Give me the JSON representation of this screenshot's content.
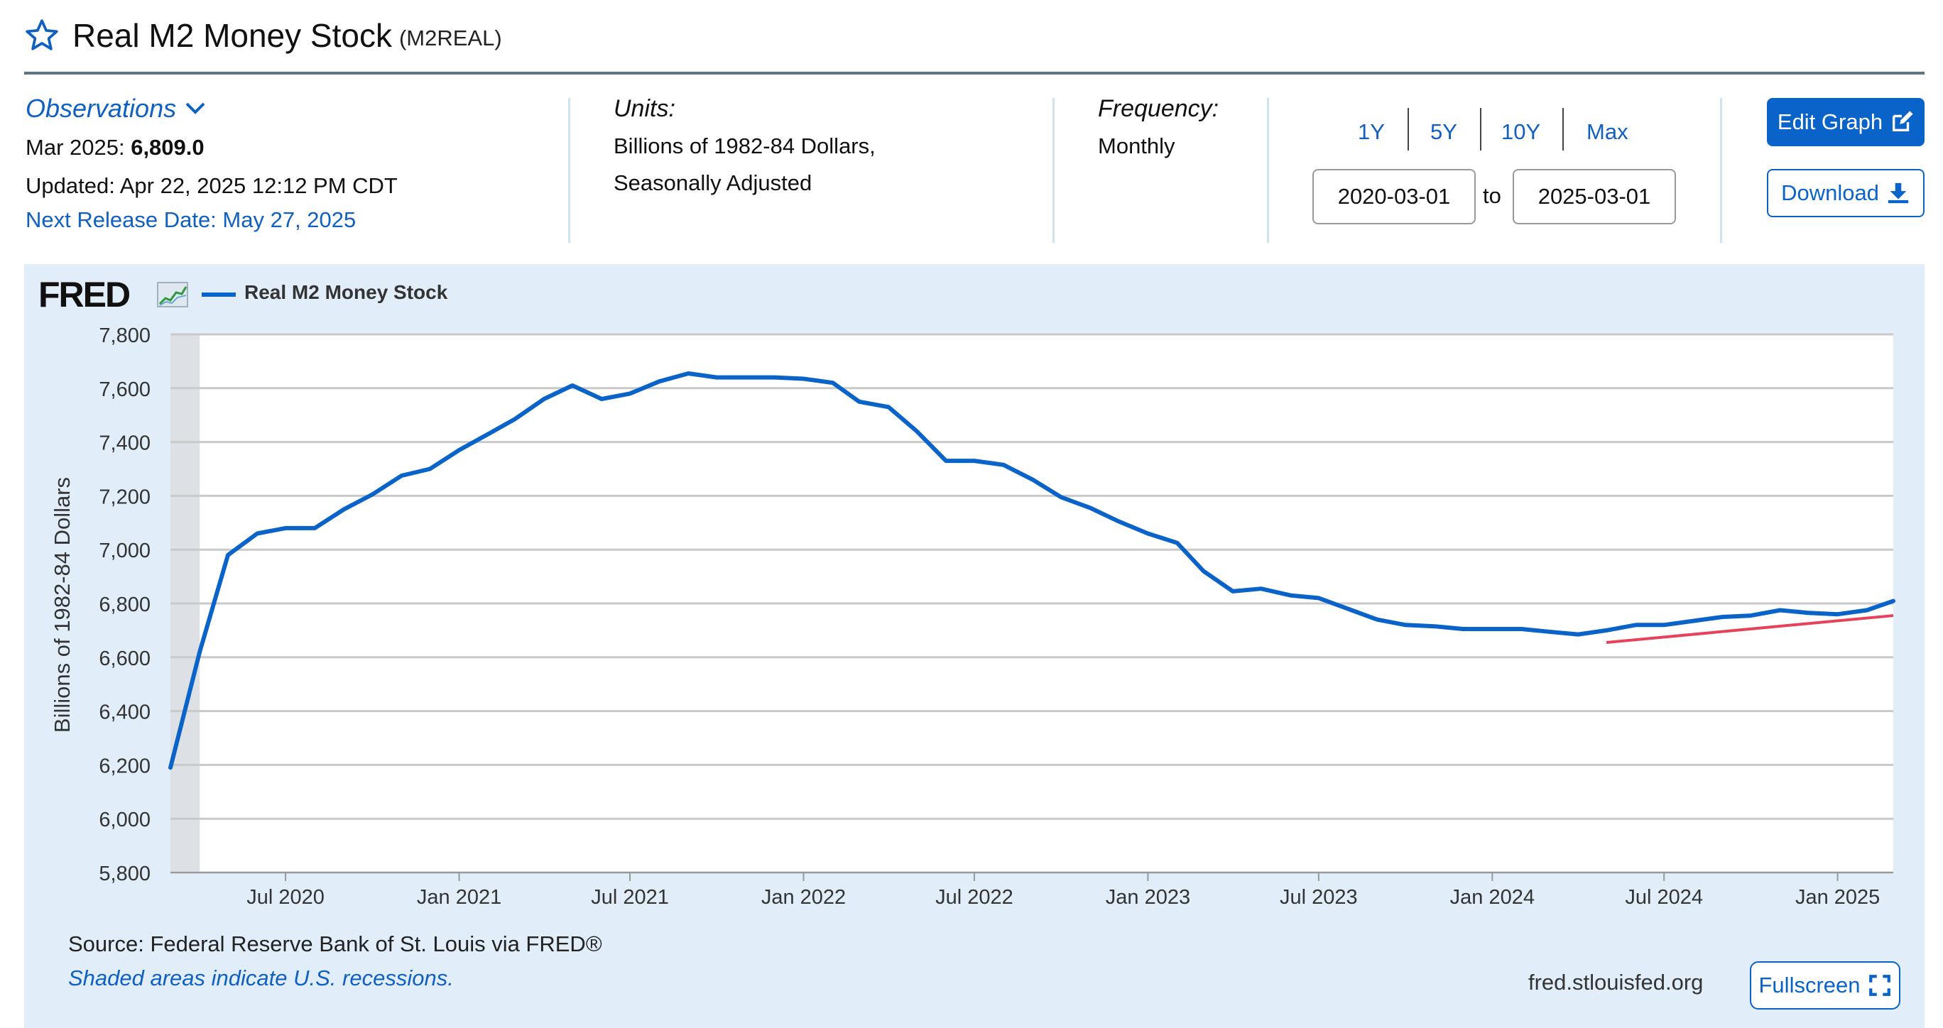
{
  "header": {
    "title": "Real M2 Money Stock",
    "series_id": "(M2REAL)"
  },
  "meta": {
    "observations_label": "Observations",
    "latest_date": "Mar 2025:",
    "latest_value": "6,809.0",
    "updated": "Updated: Apr 22, 2025 12:12 PM CDT",
    "next_release": "Next Release Date: May 27, 2025",
    "units_label": "Units:",
    "units_line1": "Billions of 1982-84 Dollars,",
    "units_line2": "Seasonally Adjusted",
    "frequency_label": "Frequency:",
    "frequency_value": "Monthly"
  },
  "range": {
    "presets": [
      "1Y",
      "5Y",
      "10Y",
      "Max"
    ],
    "start_date": "2020-03-01",
    "to_label": "to",
    "end_date": "2025-03-01"
  },
  "buttons": {
    "edit_graph": "Edit Graph",
    "download": "Download",
    "fullscreen": "Fullscreen"
  },
  "graph": {
    "logo": "FRED",
    "source": "Source: Federal Reserve Bank of St. Louis via FRED®",
    "recession_note": "Shaded areas indicate U.S. recessions.",
    "site": "fred.stlouisfed.org"
  },
  "colors": {
    "brand_blue": "#0a63c9",
    "link_blue": "#1060c2",
    "panel_bg": "#e1edf8",
    "series_line": "#0a63c9",
    "trend_line": "#e8425a",
    "recession_shade": "#dde1e6"
  },
  "chart_data": {
    "type": "line",
    "legend_position": "top-left",
    "grid": true,
    "ylabel": "Billions of 1982-84 Dollars",
    "ylim": [
      5800,
      7800
    ],
    "yticks": [
      5800,
      6000,
      6200,
      6400,
      6600,
      6800,
      7000,
      7200,
      7400,
      7600,
      7800
    ],
    "ytick_labels": [
      "5,800",
      "6,000",
      "6,200",
      "6,400",
      "6,600",
      "6,800",
      "7,000",
      "7,200",
      "7,400",
      "7,600",
      "7,800"
    ],
    "xlim": [
      "2020-03-01",
      "2025-03-01"
    ],
    "xticks": [
      "2020-07-01",
      "2021-01-01",
      "2021-07-01",
      "2022-01-01",
      "2022-07-01",
      "2023-01-01",
      "2023-07-01",
      "2024-01-01",
      "2024-07-01",
      "2025-01-01"
    ],
    "xtick_labels": [
      "Jul 2020",
      "Jan 2021",
      "Jul 2021",
      "Jan 2022",
      "Jul 2022",
      "Jan 2023",
      "Jul 2023",
      "Jan 2024",
      "Jul 2024",
      "Jan 2025"
    ],
    "recessions": [
      {
        "start": "2020-03-01",
        "end": "2020-04-01"
      }
    ],
    "series": [
      {
        "name": "Real M2 Money Stock",
        "x": [
          "2020-03-01",
          "2020-04-01",
          "2020-05-01",
          "2020-06-01",
          "2020-07-01",
          "2020-08-01",
          "2020-09-01",
          "2020-10-01",
          "2020-11-01",
          "2020-12-01",
          "2021-01-01",
          "2021-02-01",
          "2021-03-01",
          "2021-04-01",
          "2021-05-01",
          "2021-06-01",
          "2021-07-01",
          "2021-08-01",
          "2021-09-01",
          "2021-10-01",
          "2021-11-01",
          "2021-12-01",
          "2022-01-01",
          "2022-02-01",
          "2022-03-01",
          "2022-04-01",
          "2022-05-01",
          "2022-06-01",
          "2022-07-01",
          "2022-08-01",
          "2022-09-01",
          "2022-10-01",
          "2022-11-01",
          "2022-12-01",
          "2023-01-01",
          "2023-02-01",
          "2023-03-01",
          "2023-04-01",
          "2023-05-01",
          "2023-06-01",
          "2023-07-01",
          "2023-08-01",
          "2023-09-01",
          "2023-10-01",
          "2023-11-01",
          "2023-12-01",
          "2024-01-01",
          "2024-02-01",
          "2024-03-01",
          "2024-04-01",
          "2024-05-01",
          "2024-06-01",
          "2024-07-01",
          "2024-08-01",
          "2024-09-01",
          "2024-10-01",
          "2024-11-01",
          "2024-12-01",
          "2025-01-01",
          "2025-02-01",
          "2025-03-01"
        ],
        "values": [
          6190,
          6620,
          6980,
          7060,
          7080,
          7080,
          7150,
          7205,
          7275,
          7300,
          7370,
          7430,
          7485,
          7560,
          7610,
          7560,
          7580,
          7625,
          7655,
          7640,
          7640,
          7640,
          7635,
          7620,
          7550,
          7530,
          7440,
          7330,
          7330,
          7315,
          7260,
          7195,
          7155,
          7105,
          7060,
          7025,
          6920,
          6845,
          6855,
          6830,
          6820,
          6780,
          6740,
          6720,
          6715,
          6705,
          6705,
          6705,
          6695,
          6685,
          6700,
          6720,
          6720,
          6735,
          6750,
          6755,
          6775,
          6765,
          6760,
          6775,
          6809
        ]
      }
    ],
    "trend_line": {
      "x": [
        "2024-05-01",
        "2025-03-01"
      ],
      "values": [
        6655,
        6755
      ]
    }
  }
}
